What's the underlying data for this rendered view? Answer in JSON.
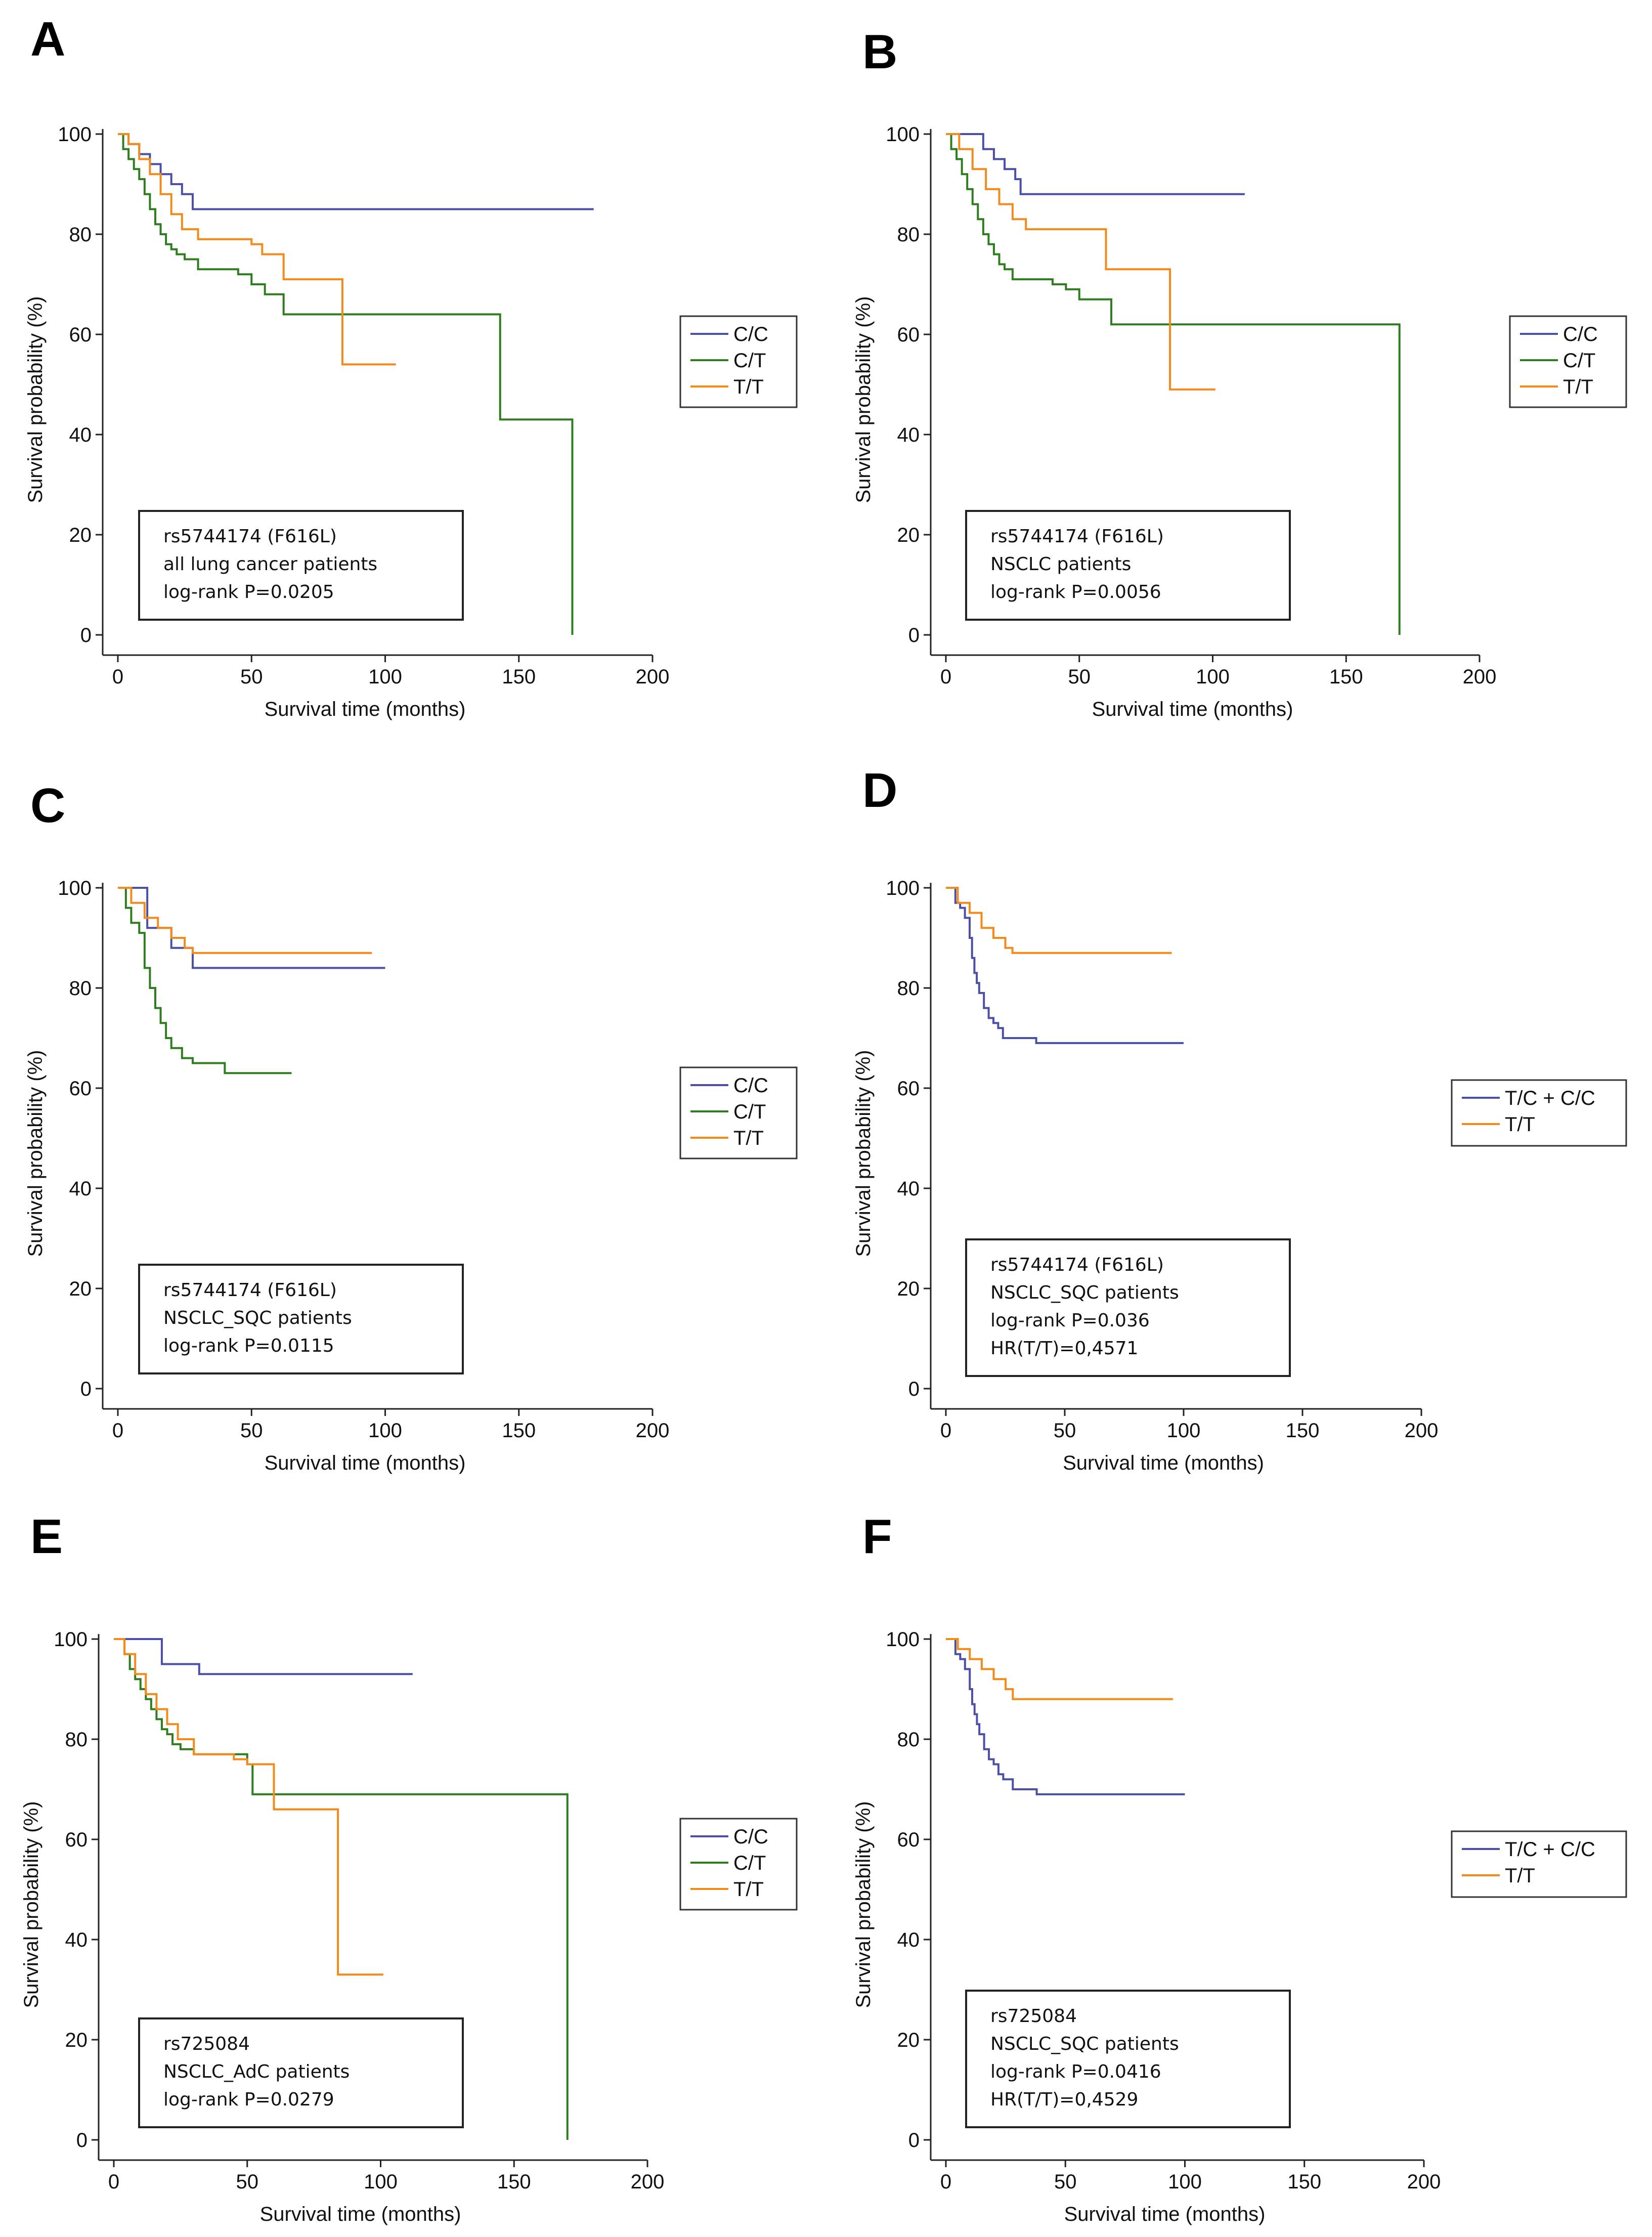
{
  "chart_data": [
    {
      "panel": "A",
      "type": "line",
      "xlabel": "Survival time (months)",
      "ylabel": "Survival probability (%)",
      "xlim": [
        0,
        200
      ],
      "ylim": [
        0,
        100
      ],
      "xticks": [
        "0",
        "50",
        "100",
        "150",
        "200"
      ],
      "yticks": [
        "0",
        "20",
        "40",
        "60",
        "80",
        "100"
      ],
      "legend_position": "right",
      "annotation": [
        "rs5744174 (F616L)",
        "all lung cancer patients",
        "log-rank P=0.0205"
      ],
      "series": [
        {
          "name": "C/C",
          "color": "#4b4fa6",
          "x": [
            0,
            4,
            8,
            12,
            16,
            20,
            24,
            28,
            178
          ],
          "y": [
            100,
            98,
            96,
            94,
            92,
            90,
            88,
            85,
            85
          ]
        },
        {
          "name": "C/T",
          "color": "#2e7d1f",
          "x": [
            0,
            2,
            4,
            6,
            8,
            10,
            12,
            14,
            16,
            18,
            20,
            22,
            25,
            30,
            35,
            40,
            45,
            50,
            55,
            62,
            100,
            143,
            170,
            170
          ],
          "y": [
            100,
            97,
            95,
            93,
            91,
            88,
            85,
            82,
            80,
            78,
            77,
            76,
            75,
            73,
            73,
            73,
            72,
            70,
            68,
            64,
            64,
            43,
            43,
            0
          ]
        },
        {
          "name": "T/T",
          "color": "#f28a1c",
          "x": [
            0,
            4,
            8,
            12,
            16,
            20,
            24,
            30,
            40,
            50,
            54,
            60,
            62,
            70,
            84,
            84,
            104
          ],
          "y": [
            100,
            98,
            95,
            92,
            88,
            84,
            81,
            79,
            79,
            78,
            76,
            76,
            71,
            71,
            71,
            54,
            54
          ]
        }
      ]
    },
    {
      "panel": "B",
      "type": "line",
      "xlabel": "Survival time (months)",
      "ylabel": "Survival probability (%)",
      "xlim": [
        0,
        200
      ],
      "ylim": [
        0,
        100
      ],
      "xticks": [
        "0",
        "50",
        "100",
        "150",
        "200"
      ],
      "yticks": [
        "0",
        "20",
        "40",
        "60",
        "80",
        "100"
      ],
      "legend_position": "right",
      "annotation": [
        "rs5744174 (F616L)",
        "NSCLC patients",
        "log-rank P=0.0056"
      ],
      "series": [
        {
          "name": "C/C",
          "color": "#4b4fa6",
          "x": [
            0,
            10,
            14,
            18,
            22,
            26,
            28,
            112
          ],
          "y": [
            100,
            100,
            97,
            95,
            93,
            91,
            88,
            88
          ]
        },
        {
          "name": "C/T",
          "color": "#2e7d1f",
          "x": [
            0,
            2,
            4,
            6,
            8,
            10,
            12,
            14,
            16,
            18,
            20,
            22,
            25,
            30,
            40,
            45,
            50,
            55,
            62,
            170,
            170
          ],
          "y": [
            100,
            97,
            95,
            92,
            89,
            86,
            83,
            80,
            78,
            76,
            74,
            73,
            71,
            71,
            70,
            69,
            67,
            67,
            62,
            62,
            0
          ]
        },
        {
          "name": "T/T",
          "color": "#f28a1c",
          "x": [
            0,
            5,
            10,
            15,
            20,
            25,
            30,
            45,
            60,
            60,
            84,
            84,
            101
          ],
          "y": [
            100,
            97,
            93,
            89,
            86,
            83,
            81,
            81,
            79,
            73,
            73,
            49,
            49
          ]
        }
      ]
    },
    {
      "panel": "C",
      "type": "line",
      "xlabel": "Survival time (months)",
      "ylabel": "Survival probability (%)",
      "xlim": [
        0,
        200
      ],
      "ylim": [
        0,
        100
      ],
      "xticks": [
        "0",
        "50",
        "100",
        "150",
        "200"
      ],
      "yticks": [
        "0",
        "20",
        "40",
        "60",
        "80",
        "100"
      ],
      "legend_position": "right",
      "annotation": [
        "rs5744174 (F616L)",
        "NSCLC_SQC patients",
        "log-rank P=0.0115"
      ],
      "series": [
        {
          "name": "C/C",
          "color": "#4b4fa6",
          "x": [
            0,
            10,
            11,
            20,
            28,
            100
          ],
          "y": [
            100,
            100,
            92,
            88,
            84,
            84
          ]
        },
        {
          "name": "C/T",
          "color": "#2e7d1f",
          "x": [
            0,
            3,
            5,
            8,
            10,
            12,
            14,
            16,
            18,
            20,
            24,
            28,
            40,
            65
          ],
          "y": [
            100,
            96,
            93,
            91,
            84,
            80,
            76,
            73,
            70,
            68,
            66,
            65,
            63,
            63
          ]
        },
        {
          "name": "T/T",
          "color": "#f28a1c",
          "x": [
            0,
            5,
            10,
            15,
            20,
            25,
            28,
            95
          ],
          "y": [
            100,
            97,
            94,
            92,
            90,
            88,
            87,
            87
          ]
        }
      ]
    },
    {
      "panel": "D",
      "type": "line",
      "xlabel": "Survival time (months)",
      "ylabel": "Survival probability (%)",
      "xlim": [
        0,
        200
      ],
      "ylim": [
        0,
        100
      ],
      "xticks": [
        "0",
        "50",
        "100",
        "150",
        "200"
      ],
      "yticks": [
        "0",
        "20",
        "40",
        "60",
        "80",
        "100"
      ],
      "legend_position": "right",
      "annotation": [
        "rs5744174 (F616L)",
        "NSCLC_SQC patients",
        "log-rank P=0.036",
        "HR(T/T)=0,4571"
      ],
      "series": [
        {
          "name": "T/C + C/C",
          "color": "#4b4fa6",
          "x": [
            0,
            4,
            6,
            8,
            10,
            11,
            12,
            13,
            14,
            16,
            18,
            20,
            22,
            24,
            28,
            38,
            100
          ],
          "y": [
            100,
            97,
            96,
            94,
            90,
            86,
            83,
            81,
            79,
            76,
            74,
            73,
            72,
            70,
            70,
            69,
            69
          ]
        },
        {
          "name": "T/T",
          "color": "#f28a1c",
          "x": [
            0,
            5,
            10,
            15,
            20,
            25,
            28,
            95
          ],
          "y": [
            100,
            97,
            95,
            92,
            90,
            88,
            87,
            87
          ]
        }
      ]
    },
    {
      "panel": "E",
      "type": "line",
      "xlabel": "Survival time (months)",
      "ylabel": "Survival probability (%)",
      "xlim": [
        0,
        200
      ],
      "ylim": [
        0,
        100
      ],
      "xticks": [
        "0",
        "50",
        "100",
        "150",
        "200"
      ],
      "yticks": [
        "0",
        "20",
        "40",
        "60",
        "80",
        "100"
      ],
      "legend_position": "right",
      "annotation": [
        "rs725084",
        "NSCLC_AdC patients",
        "log-rank P=0.0279"
      ],
      "series": [
        {
          "name": "C/C",
          "color": "#4b4fa6",
          "x": [
            0,
            15,
            18,
            30,
            32,
            112
          ],
          "y": [
            100,
            100,
            95,
            95,
            93,
            93
          ]
        },
        {
          "name": "C/T",
          "color": "#2e7d1f",
          "x": [
            0,
            4,
            6,
            8,
            10,
            12,
            14,
            16,
            18,
            20,
            22,
            25,
            30,
            45,
            50,
            52,
            170,
            170
          ],
          "y": [
            100,
            97,
            94,
            92,
            90,
            88,
            86,
            84,
            82,
            81,
            79,
            78,
            77,
            77,
            75,
            69,
            69,
            0
          ]
        },
        {
          "name": "T/T",
          "color": "#f28a1c",
          "x": [
            0,
            4,
            8,
            12,
            16,
            20,
            24,
            30,
            40,
            45,
            50,
            60,
            60,
            84,
            84,
            101
          ],
          "y": [
            100,
            97,
            93,
            89,
            86,
            83,
            80,
            77,
            77,
            76,
            75,
            75,
            66,
            66,
            33,
            33
          ]
        }
      ]
    },
    {
      "panel": "F",
      "type": "line",
      "xlabel": "Survival time (months)",
      "ylabel": "Survival probability (%)",
      "xlim": [
        0,
        200
      ],
      "ylim": [
        0,
        100
      ],
      "xticks": [
        "0",
        "50",
        "100",
        "150",
        "200"
      ],
      "yticks": [
        "0",
        "20",
        "40",
        "60",
        "80",
        "100"
      ],
      "legend_position": "right",
      "annotation": [
        "rs725084",
        "NSCLC_SQC patients",
        "log-rank P=0.0416",
        "HR(T/T)=0,4529"
      ],
      "series": [
        {
          "name": "T/C + C/C",
          "color": "#4b4fa6",
          "x": [
            0,
            4,
            6,
            8,
            10,
            11,
            12,
            13,
            14,
            16,
            18,
            20,
            22,
            24,
            28,
            38,
            100
          ],
          "y": [
            100,
            97,
            96,
            94,
            90,
            87,
            85,
            83,
            81,
            78,
            76,
            75,
            73,
            72,
            70,
            69,
            69
          ]
        },
        {
          "name": "T/T",
          "color": "#f28a1c",
          "x": [
            0,
            5,
            10,
            15,
            20,
            25,
            28,
            95
          ],
          "y": [
            100,
            98,
            96,
            94,
            92,
            90,
            88,
            88
          ]
        }
      ]
    }
  ]
}
